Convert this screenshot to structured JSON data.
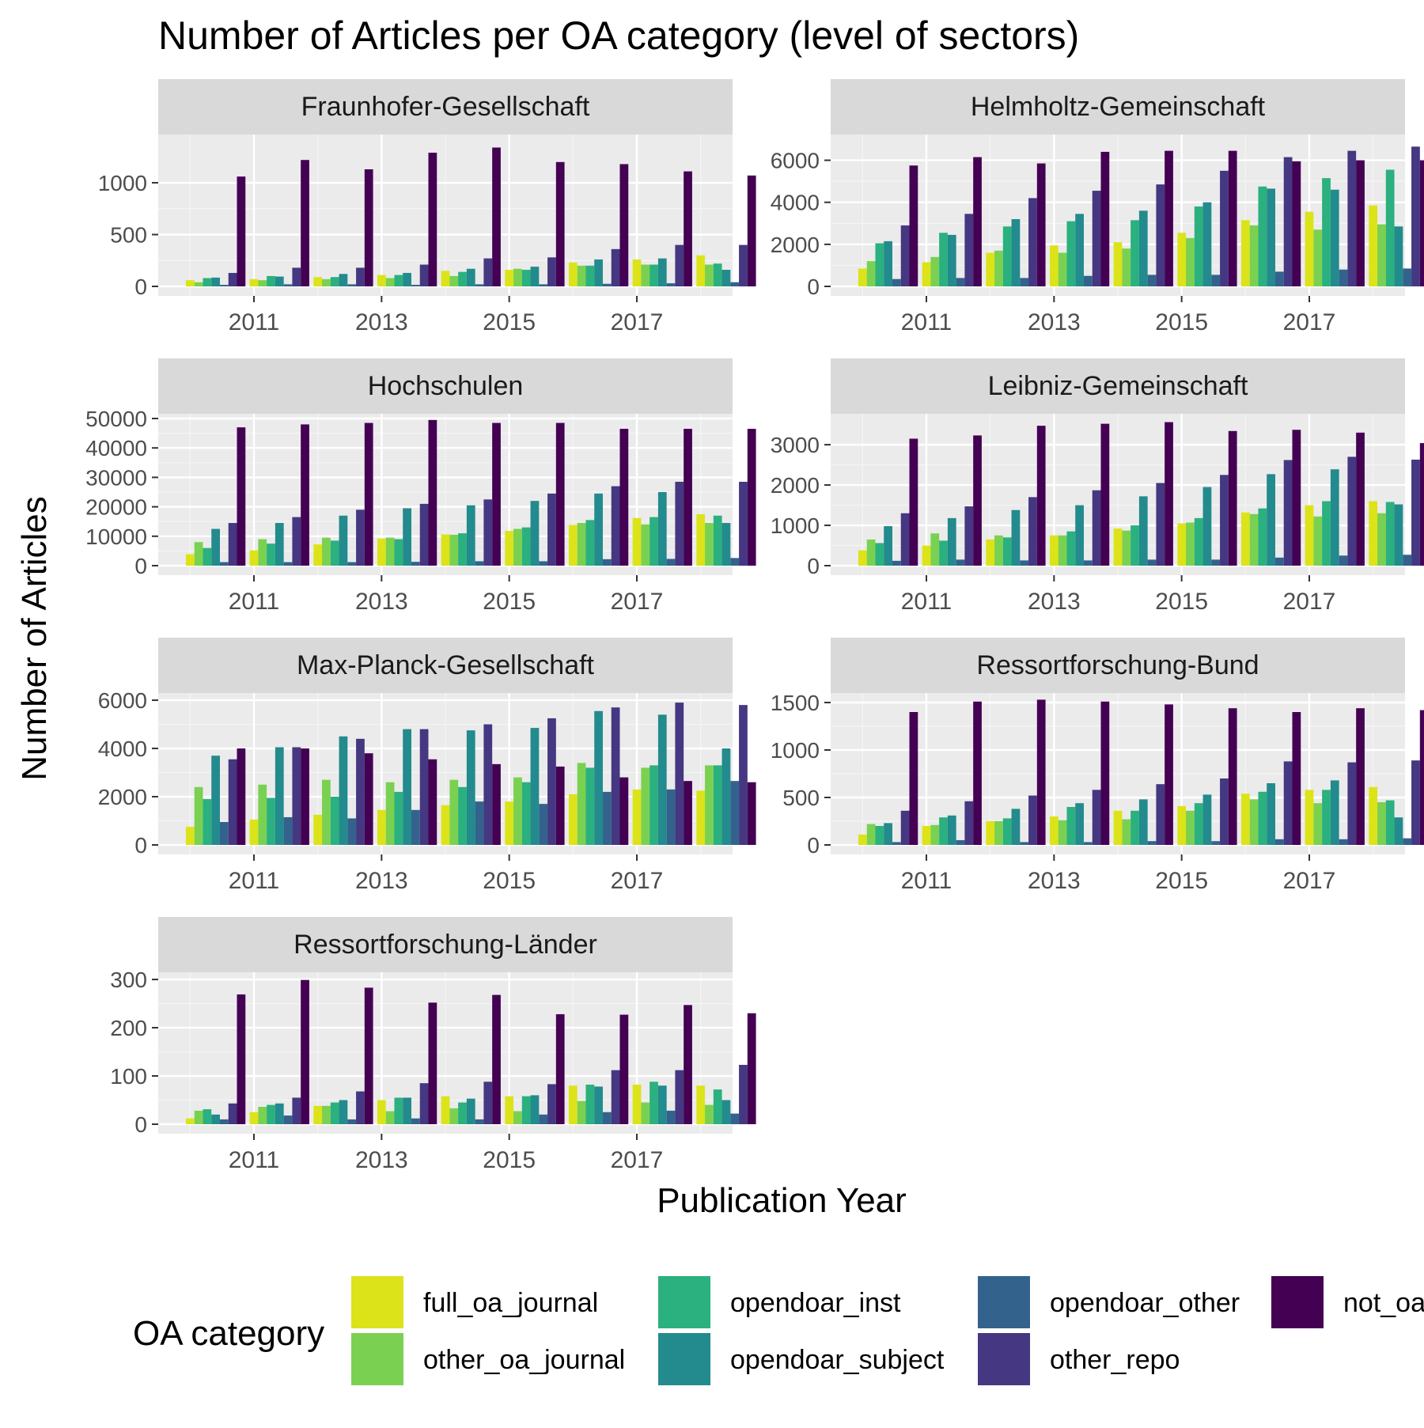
{
  "chart_data": {
    "type": "bar",
    "title": "Number of Articles per OA category (level of sectors)",
    "xlabel": "Publication Year",
    "ylabel": "Number of Articles",
    "x_tick_labels": [
      "2011",
      "2013",
      "2015",
      "2017"
    ],
    "years": [
      2010,
      2011,
      2012,
      2013,
      2014,
      2015,
      2016,
      2017,
      2018
    ],
    "legend": {
      "title": "OA category",
      "position": "bottom",
      "entries": [
        {
          "name": "full_oa_journal",
          "color": "#DCE319"
        },
        {
          "name": "other_oa_journal",
          "color": "#7AD151"
        },
        {
          "name": "opendoar_inst",
          "color": "#2BB07F"
        },
        {
          "name": "opendoar_subject",
          "color": "#238A8D"
        },
        {
          "name": "opendoar_other",
          "color": "#33638D"
        },
        {
          "name": "other_repo",
          "color": "#453781"
        },
        {
          "name": "not_oa",
          "color": "#440154"
        }
      ]
    },
    "grid": true,
    "panels": [
      {
        "title": "Fraunhofer-Gesellschaft",
        "ylim": [
          0,
          1420
        ],
        "yticks": [
          0,
          500,
          1000
        ],
        "series": [
          {
            "name": "full_oa_journal",
            "values": [
              60,
              70,
              90,
              110,
              150,
              160,
              230,
              260,
              300
            ]
          },
          {
            "name": "other_oa_journal",
            "values": [
              40,
              60,
              70,
              80,
              100,
              170,
              200,
              210,
              210
            ]
          },
          {
            "name": "opendoar_inst",
            "values": [
              80,
              100,
              90,
              110,
              140,
              160,
              200,
              210,
              220
            ]
          },
          {
            "name": "opendoar_subject",
            "values": [
              85,
              95,
              120,
              130,
              170,
              190,
              260,
              270,
              160
            ]
          },
          {
            "name": "opendoar_other",
            "values": [
              15,
              20,
              20,
              15,
              20,
              20,
              25,
              30,
              40
            ]
          },
          {
            "name": "other_repo",
            "values": [
              130,
              180,
              180,
              210,
              270,
              280,
              360,
              400,
              400
            ]
          },
          {
            "name": "not_oa",
            "values": [
              1060,
              1220,
              1130,
              1290,
              1340,
              1200,
              1180,
              1110,
              1070
            ]
          }
        ]
      },
      {
        "title": "Helmholtz-Gemeinschaft",
        "ylim": [
          0,
          7000
        ],
        "yticks": [
          0,
          2000,
          4000,
          6000
        ],
        "series": [
          {
            "name": "full_oa_journal",
            "values": [
              850,
              1150,
              1600,
              1950,
              2100,
              2550,
              3150,
              3550,
              3850
            ]
          },
          {
            "name": "other_oa_journal",
            "values": [
              1200,
              1400,
              1700,
              1600,
              1800,
              2300,
              2900,
              2700,
              2950
            ]
          },
          {
            "name": "opendoar_inst",
            "values": [
              2050,
              2550,
              2850,
              3100,
              3150,
              3800,
              4750,
              5150,
              5550
            ]
          },
          {
            "name": "opendoar_subject",
            "values": [
              2150,
              2450,
              3200,
              3450,
              3600,
              4000,
              4650,
              4600,
              2850
            ]
          },
          {
            "name": "opendoar_other",
            "values": [
              350,
              400,
              400,
              500,
              550,
              550,
              700,
              800,
              850
            ]
          },
          {
            "name": "other_repo",
            "values": [
              2900,
              3450,
              4200,
              4550,
              4850,
              5500,
              6150,
              6450,
              6650
            ]
          },
          {
            "name": "not_oa",
            "values": [
              5750,
              6150,
              5850,
              6400,
              6450,
              6450,
              5950,
              6000,
              6000
            ]
          }
        ]
      },
      {
        "title": "Hochschulen",
        "ylim": [
          0,
          50000
        ],
        "yticks": [
          0,
          10000,
          20000,
          30000,
          40000,
          50000
        ],
        "series": [
          {
            "name": "full_oa_journal",
            "values": [
              3900,
              5200,
              7200,
              9200,
              10600,
              11800,
              13800,
              16200,
              17500
            ]
          },
          {
            "name": "other_oa_journal",
            "values": [
              8000,
              9000,
              9500,
              9500,
              10500,
              12500,
              14500,
              14000,
              14500
            ]
          },
          {
            "name": "opendoar_inst",
            "values": [
              6000,
              7500,
              8500,
              9000,
              11000,
              13000,
              15500,
              16500,
              17000
            ]
          },
          {
            "name": "opendoar_subject",
            "values": [
              12500,
              14500,
              17000,
              19500,
              20500,
              22000,
              24500,
              25000,
              14500
            ]
          },
          {
            "name": "opendoar_other",
            "values": [
              1200,
              1200,
              1200,
              1300,
              1500,
              1500,
              2200,
              2300,
              2600
            ]
          },
          {
            "name": "other_repo",
            "values": [
              14500,
              16500,
              19000,
              21000,
              22500,
              24500,
              27000,
              28500,
              28500
            ]
          },
          {
            "name": "not_oa",
            "values": [
              47000,
              48000,
              48500,
              49500,
              48500,
              48500,
              46500,
              46500,
              46500
            ]
          }
        ]
      },
      {
        "title": "Leibniz-Gemeinschaft",
        "ylim": [
          0,
          3650
        ],
        "yticks": [
          0,
          1000,
          2000,
          3000
        ],
        "series": [
          {
            "name": "full_oa_journal",
            "values": [
              380,
              500,
              650,
              750,
              920,
              1050,
              1320,
              1500,
              1600
            ]
          },
          {
            "name": "other_oa_journal",
            "values": [
              650,
              800,
              750,
              750,
              870,
              1070,
              1280,
              1220,
              1300
            ]
          },
          {
            "name": "opendoar_inst",
            "values": [
              560,
              620,
              700,
              850,
              1000,
              1180,
              1420,
              1600,
              1580
            ]
          },
          {
            "name": "opendoar_subject",
            "values": [
              980,
              1180,
              1380,
              1500,
              1720,
              1950,
              2270,
              2390,
              1520
            ]
          },
          {
            "name": "opendoar_other",
            "values": [
              120,
              150,
              130,
              130,
              150,
              150,
              200,
              250,
              270
            ]
          },
          {
            "name": "other_repo",
            "values": [
              1300,
              1470,
              1700,
              1870,
              2050,
              2250,
              2620,
              2700,
              2630
            ]
          },
          {
            "name": "not_oa",
            "values": [
              3150,
              3230,
              3470,
              3520,
              3560,
              3340,
              3370,
              3300,
              3040
            ]
          }
        ]
      },
      {
        "title": "Max-Planck-Gesellschaft",
        "ylim": [
          0,
          6100
        ],
        "yticks": [
          0,
          2000,
          4000,
          6000
        ],
        "series": [
          {
            "name": "full_oa_journal",
            "values": [
              750,
              1050,
              1250,
              1450,
              1650,
              1800,
              2100,
              2300,
              2250
            ]
          },
          {
            "name": "other_oa_journal",
            "values": [
              2400,
              2500,
              2700,
              2600,
              2700,
              2800,
              3400,
              3200,
              3300
            ]
          },
          {
            "name": "opendoar_inst",
            "values": [
              1900,
              1950,
              2000,
              2200,
              2400,
              2600,
              3200,
              3300,
              3300
            ]
          },
          {
            "name": "opendoar_subject",
            "values": [
              3700,
              4050,
              4500,
              4800,
              4750,
              4850,
              5550,
              5400,
              4000
            ]
          },
          {
            "name": "opendoar_other",
            "values": [
              950,
              1150,
              1100,
              1450,
              1800,
              1700,
              2200,
              2300,
              2650
            ]
          },
          {
            "name": "other_repo",
            "values": [
              3550,
              4050,
              4400,
              4800,
              5000,
              5250,
              5700,
              5900,
              5800
            ]
          },
          {
            "name": "not_oa",
            "values": [
              4000,
              4000,
              3800,
              3550,
              3350,
              3250,
              2800,
              2650,
              2600
            ]
          }
        ]
      },
      {
        "title": "Ressortforschung-Bund",
        "ylim": [
          0,
          1550
        ],
        "yticks": [
          0,
          500,
          1000,
          1500
        ],
        "series": [
          {
            "name": "full_oa_journal",
            "values": [
              110,
              200,
              250,
              300,
              360,
              410,
              540,
              580,
              610
            ]
          },
          {
            "name": "other_oa_journal",
            "values": [
              220,
              210,
              250,
              260,
              270,
              360,
              480,
              440,
              450
            ]
          },
          {
            "name": "opendoar_inst",
            "values": [
              200,
              290,
              280,
              400,
              360,
              440,
              560,
              580,
              470
            ]
          },
          {
            "name": "opendoar_subject",
            "values": [
              230,
              310,
              380,
              440,
              480,
              530,
              650,
              680,
              290
            ]
          },
          {
            "name": "opendoar_other",
            "values": [
              30,
              50,
              30,
              30,
              40,
              40,
              60,
              60,
              70
            ]
          },
          {
            "name": "other_repo",
            "values": [
              360,
              460,
              520,
              580,
              640,
              700,
              880,
              870,
              890
            ]
          },
          {
            "name": "not_oa",
            "values": [
              1400,
              1510,
              1530,
              1510,
              1480,
              1440,
              1400,
              1440,
              1420
            ]
          }
        ]
      },
      {
        "title": "Ressortforschung-Länder",
        "ylim": [
          0,
          305
        ],
        "yticks": [
          0,
          100,
          200,
          300
        ],
        "series": [
          {
            "name": "full_oa_journal",
            "values": [
              12,
              25,
              38,
              50,
              58,
              58,
              80,
              82,
              80
            ]
          },
          {
            "name": "other_oa_journal",
            "values": [
              28,
              36,
              38,
              27,
              33,
              27,
              48,
              45,
              40
            ]
          },
          {
            "name": "opendoar_inst",
            "values": [
              31,
              40,
              45,
              55,
              45,
              58,
              82,
              88,
              72
            ]
          },
          {
            "name": "opendoar_subject",
            "values": [
              20,
              43,
              50,
              55,
              53,
              60,
              78,
              80,
              50
            ]
          },
          {
            "name": "opendoar_other",
            "values": [
              10,
              18,
              10,
              12,
              10,
              20,
              25,
              28,
              22
            ]
          },
          {
            "name": "other_repo",
            "values": [
              43,
              55,
              68,
              85,
              88,
              83,
              112,
              112,
              123
            ]
          },
          {
            "name": "not_oa",
            "values": [
              269,
              299,
              283,
              252,
              268,
              228,
              227,
              247,
              230
            ]
          }
        ]
      }
    ]
  }
}
